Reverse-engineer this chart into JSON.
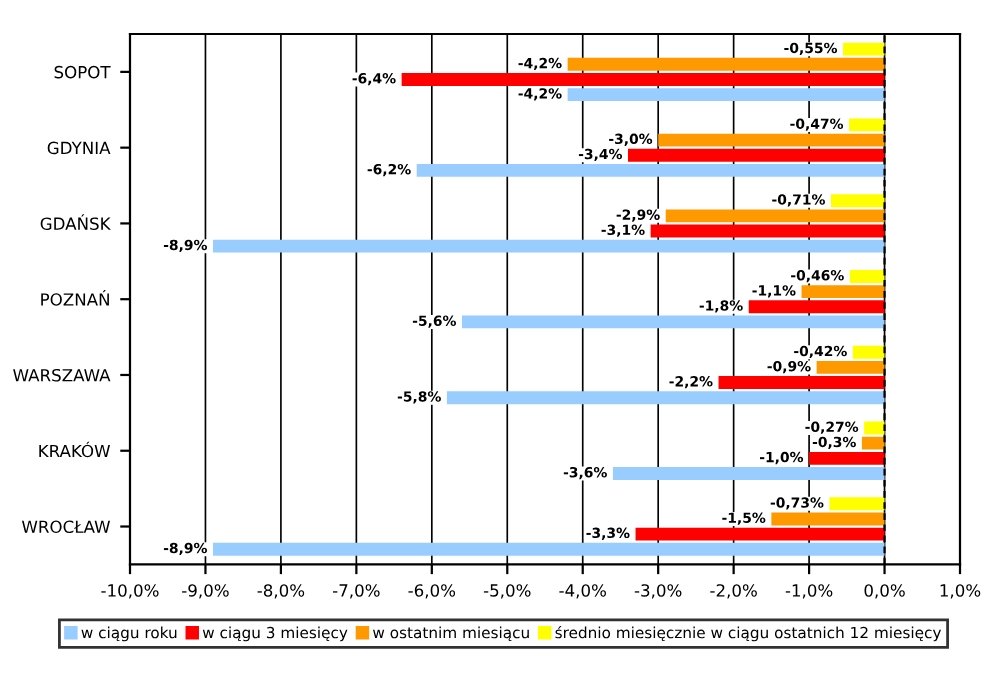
{
  "chart_data": {
    "type": "bar",
    "orientation": "horizontal",
    "categories": [
      "SOPOT",
      "GDYNIA",
      "GDAŃSK",
      "POZNAŃ",
      "WARSZAWA",
      "KRAKÓW",
      "WROCŁAW"
    ],
    "series": [
      {
        "name": "w ciągu roku",
        "color": "#99ccff",
        "values": [
          -4.2,
          -6.2,
          -8.9,
          -5.6,
          -5.8,
          -3.6,
          -8.9
        ],
        "value_labels": [
          "-4,2%",
          "-6,2%",
          "-8,9%",
          "-5,6%",
          "-5,8%",
          "-3,6%",
          "-8,9%"
        ]
      },
      {
        "name": "w ciągu 3 miesięcy",
        "color": "#ff0000",
        "values": [
          -6.4,
          -3.4,
          -3.1,
          -1.8,
          -2.2,
          -1.0,
          -3.3
        ],
        "value_labels": [
          "-6,4%",
          "-3,4%",
          "-3,1%",
          "-1,8%",
          "-2,2%",
          "-1,0%",
          "-3,3%"
        ]
      },
      {
        "name": "w ostatnim miesiącu",
        "color": "#ff9900",
        "values": [
          -4.2,
          -3.0,
          -2.9,
          -1.1,
          -0.9,
          -0.3,
          -1.5
        ],
        "value_labels": [
          "-4,2%",
          "-3,0%",
          "-2,9%",
          "-1,1%",
          "-0,9%",
          "-0,3%",
          "-1,5%"
        ]
      },
      {
        "name": "średnio miesięcznie w ciągu ostatnich 12 miesięcy",
        "color": "#ffff00",
        "values": [
          -0.55,
          -0.47,
          -0.71,
          -0.46,
          -0.42,
          -0.27,
          -0.73
        ],
        "value_labels": [
          "-0,55%",
          "-0,47%",
          "-0,71%",
          "-0,46%",
          "-0,42%",
          "-0,27%",
          "-0,73%"
        ]
      }
    ],
    "xlim": [
      -10,
      1
    ],
    "xticks": [
      {
        "value": -10,
        "label": "-10,0%"
      },
      {
        "value": -9,
        "label": "-9,0%"
      },
      {
        "value": -8,
        "label": "-8,0%"
      },
      {
        "value": -7,
        "label": "-7,0%"
      },
      {
        "value": -6,
        "label": "-6,0%"
      },
      {
        "value": -5,
        "label": "-5,0%"
      },
      {
        "value": -4,
        "label": "-4,0%"
      },
      {
        "value": -3,
        "label": "-3,0%"
      },
      {
        "value": -2,
        "label": "-2,0%"
      },
      {
        "value": -1,
        "label": "-1,0%"
      },
      {
        "value": 0,
        "label": "0,0%"
      },
      {
        "value": 1,
        "label": "1,0%"
      }
    ],
    "ref_lines": [
      {
        "axis": "x",
        "value": 0,
        "line_style": "dashed",
        "color": "#000000"
      }
    ],
    "grid": "x",
    "legend": "bottom"
  }
}
